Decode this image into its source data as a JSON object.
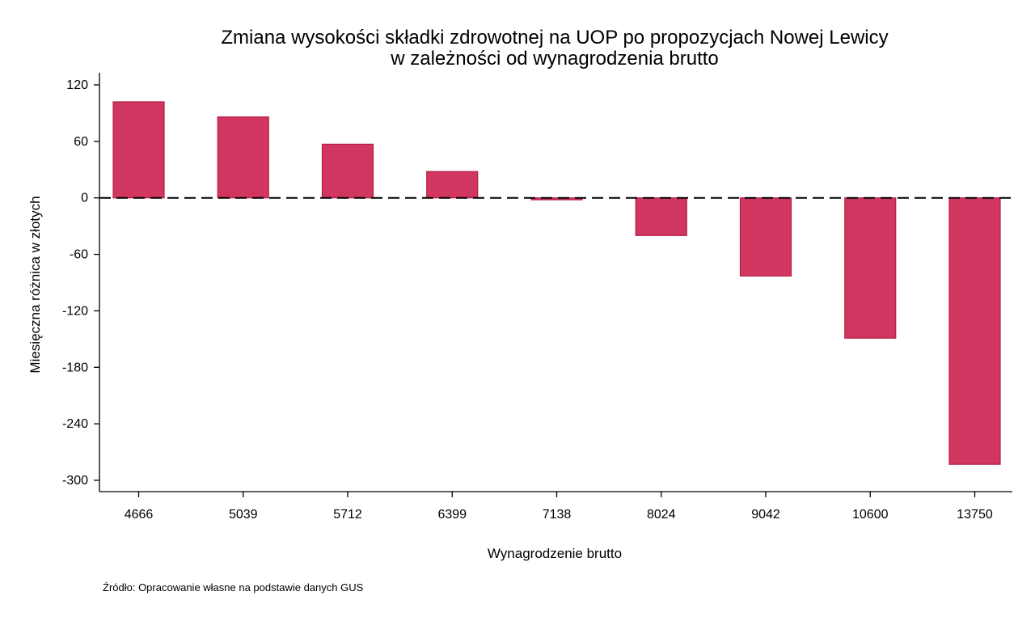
{
  "chart_data": {
    "type": "bar",
    "title": "Zmiana wysokości składki zdrowotnej na UOP po propozycjach Nowej Lewicy",
    "subtitle": "w zależności od wynagrodzenia brutto",
    "xlabel": "Wynagrodzenie brutto",
    "ylabel": "Miesięczna różnica w złotych",
    "categories": [
      "4666",
      "5039",
      "5712",
      "6399",
      "7138",
      "8024",
      "9042",
      "10600",
      "13750"
    ],
    "values": [
      102,
      86,
      57,
      28,
      -2,
      -40,
      -83,
      -149,
      -283
    ],
    "ylim": [
      -310,
      130
    ],
    "yticks": [
      120,
      60,
      0,
      -60,
      -120,
      -180,
      -240,
      -300
    ],
    "ytick_labels": [
      "120",
      "60",
      "0",
      "-60",
      "-120",
      "-180",
      "-240",
      "-300"
    ],
    "reference_line": 0,
    "grid": false,
    "bar_color": "#d0365f",
    "bar_edge_color": "#b51f47",
    "source": "Źródło: Opracowanie własne na podstawie danych GUS"
  }
}
